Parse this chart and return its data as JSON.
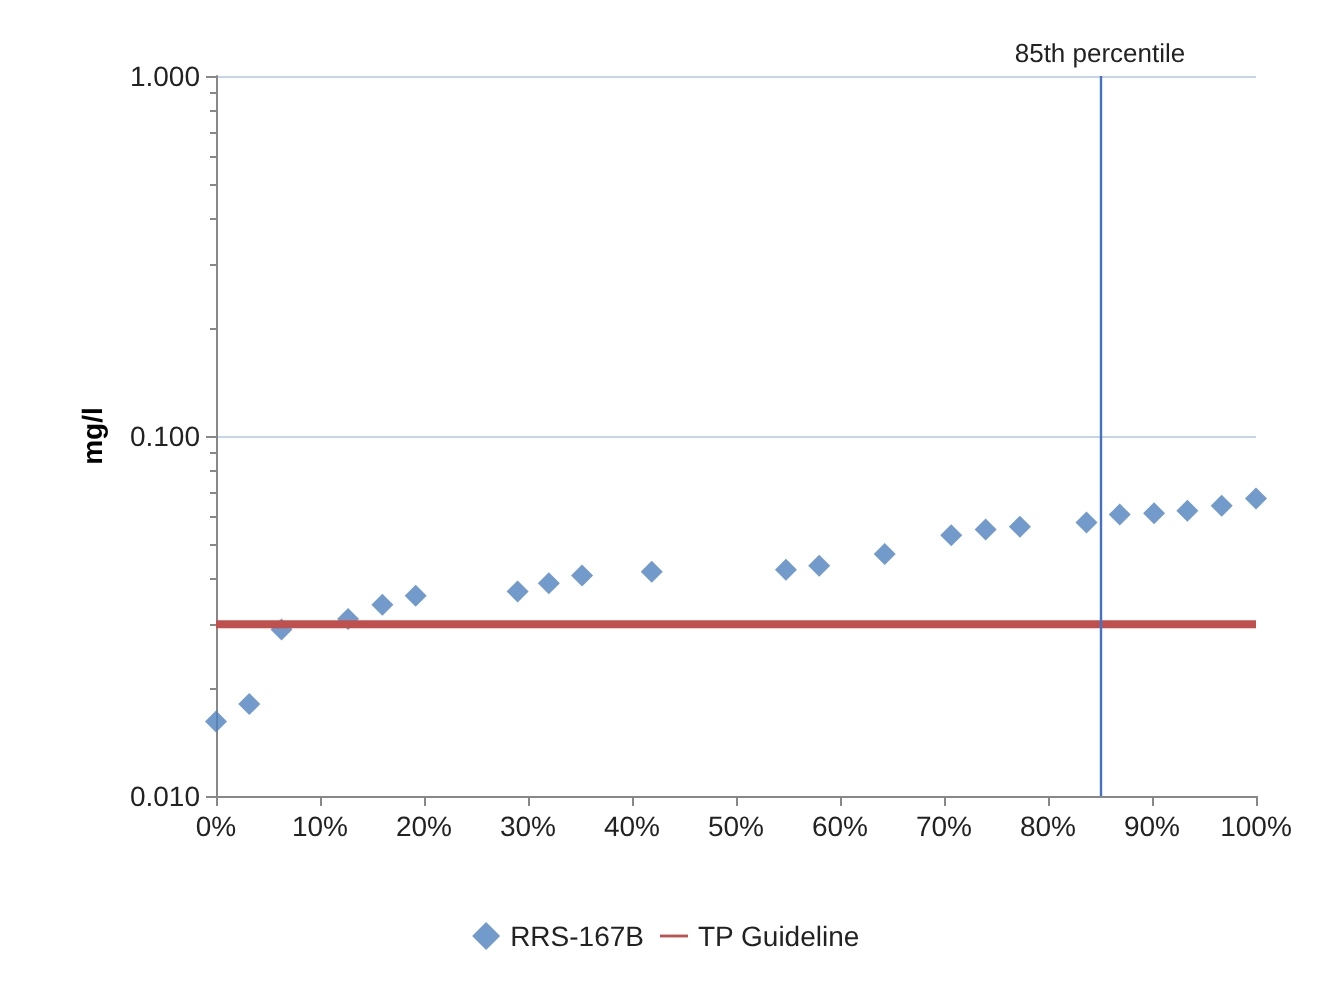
{
  "chart_data": {
    "type": "scatter",
    "ylabel": "mg/l",
    "log": "y",
    "grid": "y",
    "legend": "bottom",
    "marker": "diamond",
    "xlim": [
      0,
      100
    ],
    "ylim": [
      0.01,
      1
    ],
    "xticks": [
      {
        "value": 0,
        "label": "0%"
      },
      {
        "value": 10,
        "label": "10%"
      },
      {
        "value": 20,
        "label": "20%"
      },
      {
        "value": 30,
        "label": "30%"
      },
      {
        "value": 40,
        "label": "40%"
      },
      {
        "value": 50,
        "label": "50%"
      },
      {
        "value": 60,
        "label": "60%"
      },
      {
        "value": 70,
        "label": "70%"
      },
      {
        "value": 80,
        "label": "80%"
      },
      {
        "value": 90,
        "label": "90%"
      },
      {
        "value": 100,
        "label": "100%"
      }
    ],
    "yticks": [
      {
        "value": 0.01,
        "label": "0.010"
      },
      {
        "value": 0.1,
        "label": "0.100"
      },
      {
        "value": 1,
        "label": "1.000"
      }
    ],
    "series": [
      {
        "name": "RRS-167B",
        "type": "scatter",
        "color": "#4f81bd",
        "x": [
          0,
          3.2,
          6.3,
          12.7,
          16,
          19.2,
          29,
          32,
          35.2,
          41.9,
          54.8,
          58,
          64.3,
          70.7,
          74,
          77.3,
          83.7,
          86.9,
          90.2,
          93.4,
          96.7,
          100
        ],
        "values": [
          0.0161,
          0.018,
          0.029,
          0.031,
          0.034,
          0.036,
          0.037,
          0.039,
          0.041,
          0.042,
          0.0425,
          0.0436,
          0.047,
          0.053,
          0.055,
          0.056,
          0.0575,
          0.0605,
          0.061,
          0.062,
          0.064,
          0.067
        ]
      },
      {
        "name": "TP Guideline",
        "type": "line",
        "color": "#c0504d",
        "marker": "none",
        "x": [
          0,
          100
        ],
        "values": [
          0.03,
          0.03
        ]
      }
    ],
    "ref_lines": [
      {
        "axis": "x",
        "value": 85,
        "label": "85th percentile",
        "color": "#4472c4",
        "line_style": "solid"
      }
    ]
  }
}
